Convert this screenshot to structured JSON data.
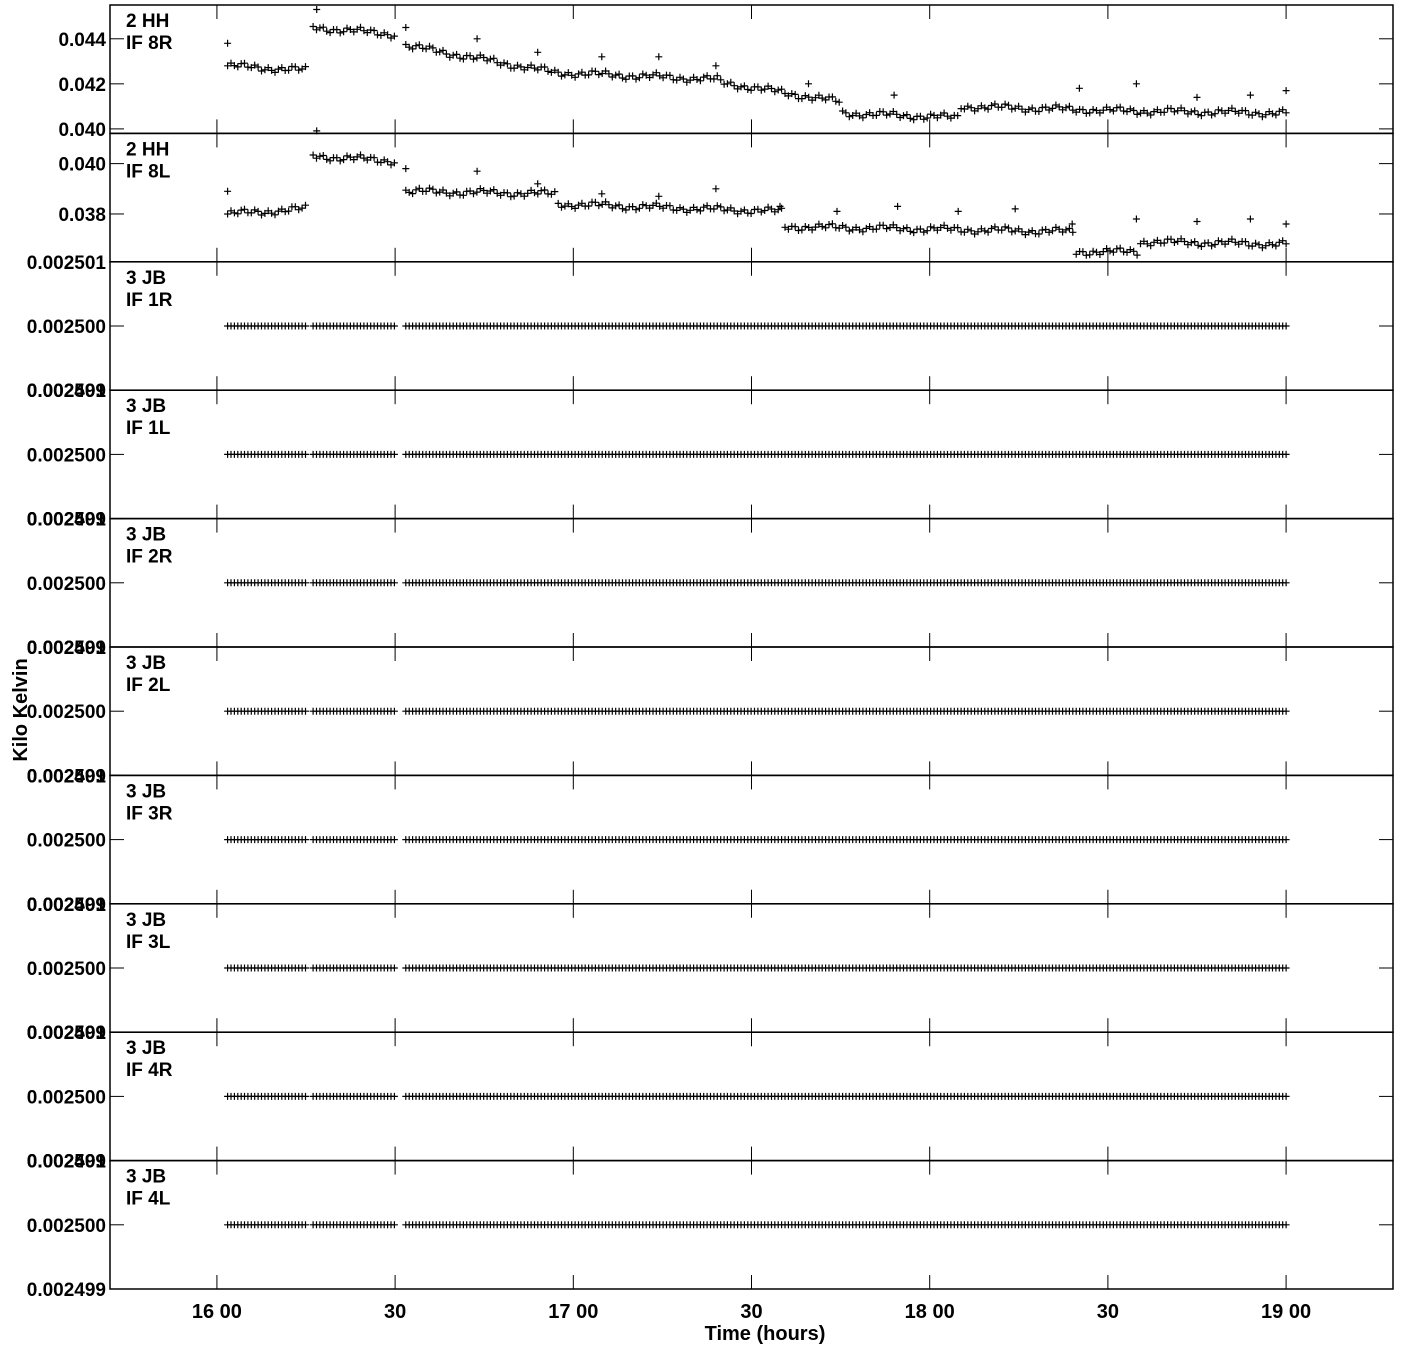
{
  "chart_data": {
    "type": "scatter",
    "xlabel": "Time (hours)",
    "ylabel": "Kilo Kelvin",
    "x_range_hours": [
      15.7,
      19.3
    ],
    "x_ticks": [
      {
        "value": 16.0,
        "label": "16 00"
      },
      {
        "value": 16.5,
        "label": "30"
      },
      {
        "value": 17.0,
        "label": "17 00"
      },
      {
        "value": 17.5,
        "label": "30"
      },
      {
        "value": 18.0,
        "label": "18 00"
      },
      {
        "value": 18.5,
        "label": "30"
      },
      {
        "value": 19.0,
        "label": "19 00"
      }
    ],
    "marker": "+",
    "panels": [
      {
        "label": [
          "2 HH",
          "IF 8R"
        ],
        "ylim": [
          0.0398,
          0.0455
        ],
        "y_ticks": [
          {
            "value": 0.04,
            "label": "0.040"
          },
          {
            "value": 0.042,
            "label": "0.042"
          },
          {
            "value": 0.044,
            "label": "0.044"
          }
        ],
        "segments": [
          {
            "x": [
              16.03,
              16.25
            ],
            "y": [
              0.0428,
              0.0426
            ]
          },
          {
            "x": [
              16.27,
              16.5
            ],
            "y": [
              0.0445,
              0.0442
            ]
          },
          {
            "x": [
              16.53,
              16.95
            ],
            "y": [
              0.0437,
              0.0425
            ]
          },
          {
            "x": [
              16.95,
              17.4
            ],
            "y": [
              0.0425,
              0.0422
            ]
          },
          {
            "x": [
              17.4,
              17.75
            ],
            "y": [
              0.0421,
              0.0412
            ]
          },
          {
            "x": [
              17.75,
              18.08
            ],
            "y": [
              0.0407,
              0.0405
            ]
          },
          {
            "x": [
              18.08,
              18.55
            ],
            "y": [
              0.041,
              0.0408
            ]
          },
          {
            "x": [
              18.55,
              19.0
            ],
            "y": [
              0.0408,
              0.0407
            ]
          }
        ],
        "outliers": [
          {
            "x": 16.03,
            "y": 0.0438
          },
          {
            "x": 16.28,
            "y": 0.0453
          },
          {
            "x": 16.53,
            "y": 0.0445
          },
          {
            "x": 16.73,
            "y": 0.044
          },
          {
            "x": 16.9,
            "y": 0.0434
          },
          {
            "x": 17.08,
            "y": 0.0432
          },
          {
            "x": 17.24,
            "y": 0.0432
          },
          {
            "x": 17.4,
            "y": 0.0428
          },
          {
            "x": 17.66,
            "y": 0.042
          },
          {
            "x": 17.9,
            "y": 0.0415
          },
          {
            "x": 18.42,
            "y": 0.0418
          },
          {
            "x": 18.58,
            "y": 0.042
          },
          {
            "x": 18.75,
            "y": 0.0414
          },
          {
            "x": 18.9,
            "y": 0.0415
          },
          {
            "x": 19.0,
            "y": 0.0417
          }
        ]
      },
      {
        "label": [
          "2 HH",
          "IF 8L"
        ],
        "ylim": [
          0.0361,
          0.0412
        ],
        "y_ticks": [
          {
            "value": 0.038,
            "label": "0.038"
          },
          {
            "value": 0.04,
            "label": "0.040"
          }
        ],
        "segments": [
          {
            "x": [
              16.03,
              16.25
            ],
            "y": [
              0.038,
              0.0382
            ]
          },
          {
            "x": [
              16.27,
              16.5
            ],
            "y": [
              0.0403,
              0.0401
            ]
          },
          {
            "x": [
              16.53,
              16.95
            ],
            "y": [
              0.0389,
              0.0388
            ]
          },
          {
            "x": [
              16.95,
              17.58
            ],
            "y": [
              0.0384,
              0.0381
            ]
          },
          {
            "x": [
              17.58,
              18.4
            ],
            "y": [
              0.0375,
              0.0373
            ]
          },
          {
            "x": [
              18.4,
              18.58
            ],
            "y": [
              0.0365,
              0.0365
            ]
          },
          {
            "x": [
              18.58,
              19.0
            ],
            "y": [
              0.0369,
              0.0368
            ]
          }
        ],
        "outliers": [
          {
            "x": 16.03,
            "y": 0.0389
          },
          {
            "x": 16.28,
            "y": 0.0413
          },
          {
            "x": 16.53,
            "y": 0.0398
          },
          {
            "x": 16.73,
            "y": 0.0397
          },
          {
            "x": 16.9,
            "y": 0.0392
          },
          {
            "x": 17.08,
            "y": 0.0388
          },
          {
            "x": 17.24,
            "y": 0.0387
          },
          {
            "x": 17.4,
            "y": 0.039
          },
          {
            "x": 17.58,
            "y": 0.0383
          },
          {
            "x": 17.74,
            "y": 0.0381
          },
          {
            "x": 17.91,
            "y": 0.0383
          },
          {
            "x": 18.08,
            "y": 0.0381
          },
          {
            "x": 18.24,
            "y": 0.0382
          },
          {
            "x": 18.4,
            "y": 0.0376
          },
          {
            "x": 18.58,
            "y": 0.0378
          },
          {
            "x": 18.75,
            "y": 0.0377
          },
          {
            "x": 18.9,
            "y": 0.0378
          },
          {
            "x": 19.0,
            "y": 0.0376
          }
        ]
      },
      {
        "label": [
          "3 JB",
          "IF 1R"
        ],
        "ylim": [
          0.002499,
          0.002501
        ],
        "y_ticks": [
          {
            "value": 0.002501,
            "label": "0.002501"
          },
          {
            "value": 0.0025,
            "label": "0.002500"
          },
          {
            "value": 0.002499,
            "label": "0.002499"
          }
        ],
        "constant": 0.0025
      },
      {
        "label": [
          "3 JB",
          "IF 1L"
        ],
        "ylim": [
          0.002499,
          0.002501
        ],
        "y_ticks": [
          {
            "value": 0.002501,
            "label": "0.002501"
          },
          {
            "value": 0.0025,
            "label": "0.002500"
          },
          {
            "value": 0.002499,
            "label": "0.002499"
          }
        ],
        "constant": 0.0025
      },
      {
        "label": [
          "3 JB",
          "IF 2R"
        ],
        "ylim": [
          0.002499,
          0.002501
        ],
        "y_ticks": [
          {
            "value": 0.002501,
            "label": "0.002501"
          },
          {
            "value": 0.0025,
            "label": "0.002500"
          },
          {
            "value": 0.002499,
            "label": "0.002499"
          }
        ],
        "constant": 0.0025
      },
      {
        "label": [
          "3 JB",
          "IF 2L"
        ],
        "ylim": [
          0.002499,
          0.002501
        ],
        "y_ticks": [
          {
            "value": 0.002501,
            "label": "0.002501"
          },
          {
            "value": 0.0025,
            "label": "0.002500"
          },
          {
            "value": 0.002499,
            "label": "0.002499"
          }
        ],
        "constant": 0.0025
      },
      {
        "label": [
          "3 JB",
          "IF 3R"
        ],
        "ylim": [
          0.002499,
          0.002501
        ],
        "y_ticks": [
          {
            "value": 0.002501,
            "label": "0.002501"
          },
          {
            "value": 0.0025,
            "label": "0.002500"
          },
          {
            "value": 0.002499,
            "label": "0.002499"
          }
        ],
        "constant": 0.0025
      },
      {
        "label": [
          "3 JB",
          "IF 3L"
        ],
        "ylim": [
          0.002499,
          0.002501
        ],
        "y_ticks": [
          {
            "value": 0.002501,
            "label": "0.002501"
          },
          {
            "value": 0.0025,
            "label": "0.002500"
          },
          {
            "value": 0.002499,
            "label": "0.002499"
          }
        ],
        "constant": 0.0025
      },
      {
        "label": [
          "3 JB",
          "IF 4R"
        ],
        "ylim": [
          0.002499,
          0.002501
        ],
        "y_ticks": [
          {
            "value": 0.002501,
            "label": "0.002501"
          },
          {
            "value": 0.0025,
            "label": "0.002500"
          },
          {
            "value": 0.002499,
            "label": "0.002499"
          }
        ],
        "constant": 0.0025
      },
      {
        "label": [
          "3 JB",
          "IF 4L"
        ],
        "ylim": [
          0.002499,
          0.002501
        ],
        "y_ticks": [
          {
            "value": 0.002501,
            "label": "0.002501"
          },
          {
            "value": 0.0025,
            "label": "0.002500"
          },
          {
            "value": 0.002499,
            "label": "0.002499"
          }
        ],
        "constant": 0.0025
      }
    ]
  }
}
